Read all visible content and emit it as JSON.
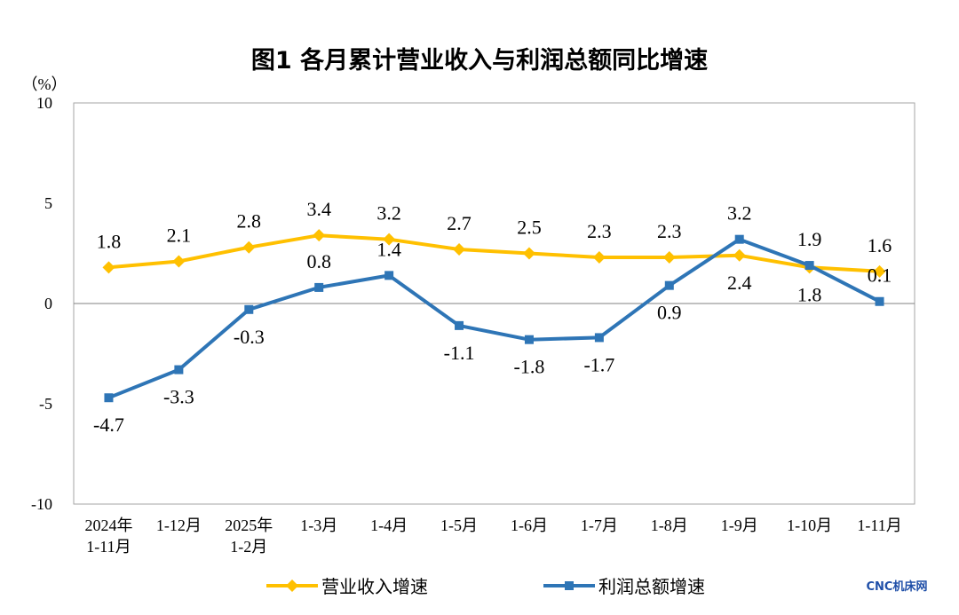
{
  "chart_data": {
    "type": "line",
    "title": "图1  各月累计营业收入与利润总额同比增速",
    "ylabel": "（%）",
    "ylim": [
      -10,
      10
    ],
    "yticks": [
      10,
      5,
      0,
      -5,
      -10
    ],
    "ytick_labels": [
      "10",
      "5",
      "0",
      "-5",
      "-10"
    ],
    "categories": [
      [
        "2024年",
        "1-11月"
      ],
      [
        "1-12月"
      ],
      [
        "2025年",
        "1-2月"
      ],
      [
        "1-3月"
      ],
      [
        "1-4月"
      ],
      [
        "1-5月"
      ],
      [
        "1-6月"
      ],
      [
        "1-7月"
      ],
      [
        "1-8月"
      ],
      [
        "1-9月"
      ],
      [
        "1-10月"
      ],
      [
        "1-11月"
      ]
    ],
    "series": [
      {
        "name": "营业收入增速",
        "color": "#FFC000",
        "marker": "diamond",
        "values": [
          1.8,
          2.1,
          2.8,
          3.4,
          3.2,
          2.7,
          2.5,
          2.3,
          2.3,
          2.4,
          1.8,
          1.6
        ],
        "labels": [
          "1.8",
          "2.1",
          "2.8",
          "3.4",
          "3.2",
          "2.7",
          "2.5",
          "2.3",
          "2.3",
          "2.4",
          "1.8",
          "1.6"
        ],
        "label_pos": [
          "above",
          "above",
          "above",
          "above",
          "above",
          "above",
          "above",
          "above",
          "above",
          "below",
          "below",
          "above"
        ]
      },
      {
        "name": "利润总额增速",
        "color": "#2E75B6",
        "marker": "square",
        "values": [
          -4.7,
          -3.3,
          -0.3,
          0.8,
          1.4,
          -1.1,
          -1.8,
          -1.7,
          0.9,
          3.2,
          1.9,
          0.1
        ],
        "labels": [
          "-4.7",
          "-3.3",
          "-0.3",
          "0.8",
          "1.4",
          "-1.1",
          "-1.8",
          "-1.7",
          "0.9",
          "3.2",
          "1.9",
          "0.1"
        ],
        "label_pos": [
          "below",
          "below",
          "below",
          "above",
          "above",
          "below",
          "below",
          "below",
          "below",
          "above",
          "above",
          "above"
        ]
      }
    ],
    "legend": "bottom"
  },
  "watermark": "CNC机床网"
}
